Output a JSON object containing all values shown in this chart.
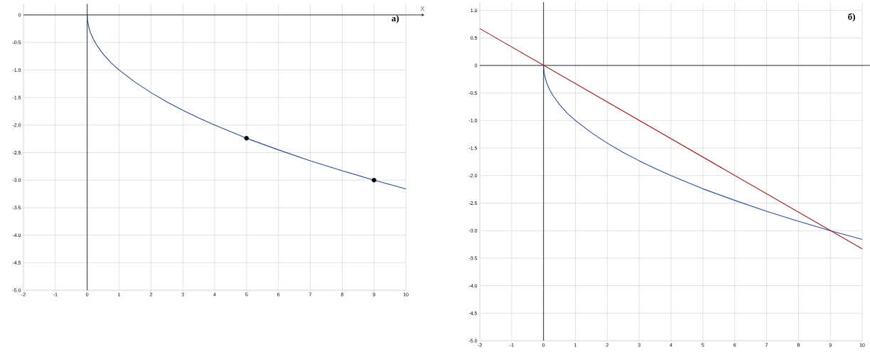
{
  "chart_data": [
    {
      "type": "line",
      "xlabel": "X",
      "annotations": [
        "а)"
      ],
      "xlim": [
        -2,
        10
      ],
      "ylim": [
        -5,
        0.2
      ],
      "xticks": [
        -2,
        -1,
        0,
        1,
        2,
        3,
        4,
        5,
        6,
        7,
        8,
        9,
        10
      ],
      "yticks": [
        {
          "value": -5,
          "label": "-5.0"
        },
        -4.5,
        {
          "value": -4,
          "label": "-4.0"
        },
        -3.5,
        {
          "value": -3,
          "label": "-3.0"
        },
        -2.5,
        {
          "value": -2,
          "label": "-2.0"
        },
        -1.5,
        {
          "value": -1,
          "label": "-1.0"
        },
        -0.5,
        0
      ],
      "grid": true,
      "series": [
        {
          "type": "line",
          "color": "#2b4a9b",
          "x": [
            0,
            0.01,
            0.05,
            0.1,
            0.2,
            0.3,
            0.5,
            0.75,
            1,
            1.5,
            2,
            2.5,
            3,
            3.5,
            4,
            5,
            6,
            7,
            8,
            9,
            10
          ],
          "values": [
            0,
            -0.1,
            -0.22,
            -0.32,
            -0.45,
            -0.55,
            -0.71,
            -0.87,
            -1,
            -1.22,
            -1.41,
            -1.58,
            -1.73,
            -1.87,
            -2,
            -2.24,
            -2.45,
            -2.65,
            -2.83,
            -3,
            -3.16
          ]
        },
        {
          "type": "scatter",
          "color": "#000000",
          "x": [
            5,
            9
          ],
          "values": [
            -2.24,
            -3
          ]
        }
      ]
    },
    {
      "type": "line",
      "annotations": [
        "б)"
      ],
      "xlim": [
        -2,
        10
      ],
      "ylim": [
        -5,
        1.15
      ],
      "xticks": [
        -2,
        -1,
        0,
        1,
        2,
        3,
        4,
        5,
        6,
        7,
        8,
        9,
        10
      ],
      "yticks": [
        {
          "value": -5,
          "label": "-5.0"
        },
        -4.5,
        {
          "value": -4,
          "label": "-4.0"
        },
        -3.5,
        {
          "value": -3,
          "label": "-3.0"
        },
        -2.5,
        {
          "value": -2,
          "label": "-2.0"
        },
        -1.5,
        {
          "value": -1,
          "label": "-1.0"
        },
        -0.5,
        0,
        0.5,
        {
          "value": 1,
          "label": "1.0"
        }
      ],
      "grid": true,
      "series": [
        {
          "type": "line",
          "color": "#2b4a9b",
          "x": [
            0,
            0.01,
            0.05,
            0.1,
            0.2,
            0.3,
            0.5,
            0.75,
            1,
            1.5,
            2,
            2.5,
            3,
            3.5,
            4,
            5,
            6,
            7,
            8,
            9,
            10
          ],
          "values": [
            0,
            -0.1,
            -0.22,
            -0.32,
            -0.45,
            -0.55,
            -0.71,
            -0.87,
            -1,
            -1.22,
            -1.41,
            -1.58,
            -1.73,
            -1.87,
            -2,
            -2.24,
            -2.45,
            -2.65,
            -2.83,
            -3,
            -3.16
          ]
        },
        {
          "type": "line",
          "color": "#a31c1c",
          "x": [
            -2,
            10
          ],
          "values": [
            0.67,
            -3.33
          ]
        }
      ]
    }
  ]
}
